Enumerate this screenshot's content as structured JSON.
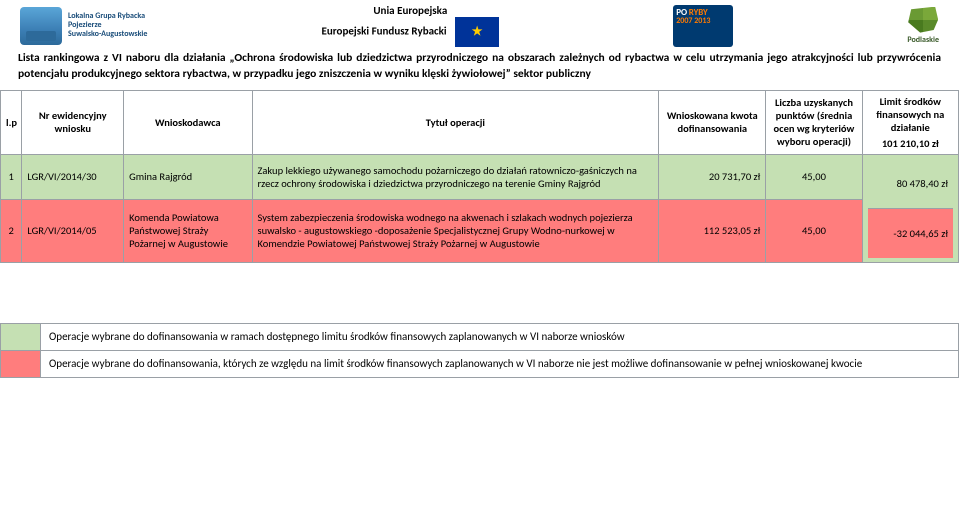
{
  "header": {
    "lgr_line1": "Lokalna Grupa Rybacka",
    "lgr_line2": "Pojezierze",
    "lgr_line3": "Suwalsko-Augustowskie",
    "center_line1": "Unia Europejska",
    "center_line2": "Europejski Fundusz Rybacki",
    "ryby_po": "PO",
    "ryby_ryby": "RYBY",
    "ryby_years": "2007\n2013",
    "ryby_sub": "",
    "podlaskie": "Podlaskie"
  },
  "title": "Lista rankingowa z VI naboru dla działania „Ochrona środowiska lub dziedzictwa przyrodniczego na obszarach zależnych od rybactwa w celu utrzymania jego atrakcyjności lub przywrócenia potencjału produkcyjnego sektora rybactwa, w przypadku jego zniszczenia w wyniku klęski żywiołowej” sektor publiczny",
  "columns": {
    "lp": "l.p",
    "nr": "Nr ewidencyjny wniosku",
    "wnioskodawca": "Wnioskodawca",
    "tytul": "Tytuł operacji",
    "kwota": "Wnioskowana kwota dofinansowania",
    "punkty": "Liczba uzyskanych punktów (średnia ocen wg kryteriów wyboru operacji)",
    "limit_top": "Limit środków finansowych na działanie",
    "limit_val": "101 210,10 zł"
  },
  "rows": [
    {
      "lp": "1",
      "nr": "LGR/VI/2014/30",
      "wnioskodawca": "Gmina Rajgród",
      "tytul": "Zakup lekkiego używanego samochodu pożarniczego do działań ratowniczo-gaśniczych na rzecz ochrony środowiska i dziedzictwa przyrodniczego na terenie Gminy Rajgród",
      "kwota": "20 731,70 zł",
      "punkty": "45,00",
      "row_color": "green",
      "limit_remaining": "80 478,40 zł"
    },
    {
      "lp": "2",
      "nr": "LGR/VI/2014/05",
      "wnioskodawca": "Komenda Powiatowa Państwowej Straży Pożarnej w Augustowie",
      "tytul": "System zabezpieczenia środowiska wodnego na akwenach i szlakach wodnych pojezierza suwalsko - augustowskiego -doposażenie Specjalistycznej Grupy Wodno-nurkowej w Komendzie Powiatowej Państwowej Straży Pożarnej w Augustowie",
      "kwota": "112 523,05 zł",
      "punkty": "45,00",
      "row_color": "red",
      "limit_remaining": "-32 044,65 zł"
    }
  ],
  "legend": {
    "green": "Operacje wybrane do dofinansowania w ramach dostępnego limitu środków finansowych zaplanowanych w VI naborze wniosków",
    "red": "Operacje wybrane do dofinansowania, których ze względu na limit środków finansowych zaplanowanych w VI naborze nie jest możliwe dofinansowanie w pełnej wnioskowanej kwocie"
  },
  "colors": {
    "green": "#c5e0b3",
    "red": "#ff7d7d",
    "border": "#9aa0a6",
    "eu_blue": "#003399",
    "eu_gold": "#ffcc00"
  }
}
